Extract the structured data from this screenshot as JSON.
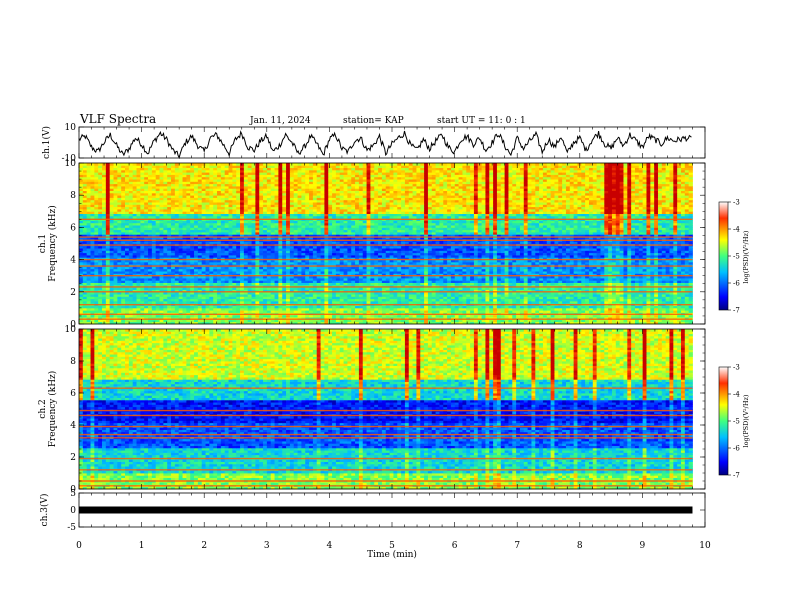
{
  "header": {
    "title": "VLF Spectra",
    "date": "Jan. 11, 2024",
    "station": "station= KAP",
    "start_ut": "start UT =  11: 0  : 1"
  },
  "chart_data": [
    {
      "type": "line",
      "name": "ch1-waveform",
      "ylabel": "ch.1(V)",
      "ylim": [
        -10,
        10
      ],
      "yticks": [
        "10",
        "-10"
      ],
      "x": [
        0.0,
        0.1,
        0.2,
        0.3,
        0.4,
        0.5,
        0.6,
        0.7,
        0.8,
        0.9,
        1.0,
        1.1,
        1.2,
        1.3,
        1.4,
        1.5,
        1.6,
        1.7,
        1.8,
        1.9,
        2.0,
        2.1,
        2.2,
        2.3,
        2.4,
        2.5,
        2.6,
        2.7,
        2.8,
        2.9,
        3.0,
        3.1,
        3.2,
        3.3,
        3.4,
        3.5,
        3.6,
        3.7,
        3.8,
        3.9,
        4.0,
        4.1,
        4.2,
        4.3,
        4.4,
        4.5,
        4.6,
        4.7,
        4.8,
        4.9,
        5.0,
        5.1,
        5.2,
        5.3,
        5.4,
        5.5,
        5.6,
        5.7,
        5.8,
        5.9,
        6.0,
        6.1,
        6.2,
        6.3,
        6.4,
        6.5,
        6.6,
        6.7,
        6.8,
        6.9,
        7.0,
        7.1,
        7.2,
        7.3,
        7.4,
        7.5,
        7.6,
        7.7,
        7.8,
        7.9,
        8.0,
        8.1,
        8.2,
        8.3,
        8.4,
        8.5,
        8.6,
        8.7,
        8.8,
        8.9,
        9.0,
        9.1,
        9.2,
        9.3,
        9.4,
        9.5,
        9.6,
        9.7,
        9.8
      ],
      "values": [
        2,
        4,
        -3,
        -6,
        0,
        5,
        -2,
        -8,
        -4,
        3,
        -1,
        -7,
        1,
        6,
        2,
        -5,
        -9,
        0,
        4,
        -2,
        -6,
        3,
        5,
        -1,
        -7,
        2,
        6,
        -3,
        -5,
        1,
        4,
        -6,
        -2,
        5,
        0,
        -7,
        -3,
        4,
        -1,
        -8,
        2,
        5,
        -4,
        -6,
        1,
        3,
        -5,
        -2,
        4,
        -7,
        -1,
        3,
        6,
        -2,
        -5,
        2,
        -4,
        1,
        5,
        -3,
        -6,
        2,
        4,
        -1,
        3,
        -5,
        0,
        6,
        -2,
        -8,
        3,
        -4,
        1,
        5,
        -6,
        2,
        -3,
        4,
        -7,
        0,
        3,
        -5,
        2,
        6,
        -1,
        -4,
        3,
        -2,
        5,
        1,
        -3,
        4,
        2,
        -1,
        3,
        1,
        2,
        3,
        2
      ],
      "xlim": [
        0,
        10
      ]
    },
    {
      "type": "heatmap",
      "name": "ch1-spectrogram",
      "ylabel": "ch.1\nFrequency (kHz)",
      "ylim": [
        0,
        10
      ],
      "yticks": [
        "0",
        "2",
        "4",
        "6",
        "8",
        "10"
      ],
      "xlim": [
        0,
        9.8
      ],
      "colorbar": {
        "label": "log(PSD)(V²/Hz)",
        "range": [
          -7,
          -3
        ],
        "ticks": [
          "-3",
          "-4",
          "-5",
          "-6",
          "-7"
        ]
      },
      "horizontal_lines_khz": [
        0.3,
        0.6,
        1.2,
        2.0,
        2.3,
        3.0,
        3.6,
        4.0,
        4.9,
        5.2,
        5.4,
        6.5
      ]
    },
    {
      "type": "heatmap",
      "name": "ch2-spectrogram",
      "ylabel": "ch.2\nFrequency (kHz)",
      "ylim": [
        0,
        10
      ],
      "yticks": [
        "0",
        "2",
        "4",
        "6",
        "8",
        "10"
      ],
      "xlim": [
        0,
        9.8
      ],
      "colorbar": {
        "label": "log(PSD)(V²/Hz)",
        "range": [
          -7,
          -3
        ],
        "ticks": [
          "-3",
          "-4",
          "-5",
          "-6",
          "-7"
        ]
      },
      "horizontal_lines_khz": [
        0.2,
        0.5,
        1.2,
        1.9,
        3.2,
        3.4,
        3.9,
        4.6,
        4.9,
        6.3
      ]
    },
    {
      "type": "line",
      "name": "ch3-trace",
      "ylabel": "ch.3(V)",
      "ylim": [
        -5,
        5
      ],
      "yticks": [
        "5",
        "0",
        "-5"
      ],
      "x": [
        0,
        9.8
      ],
      "values": [
        0,
        0
      ],
      "xlim": [
        0,
        10
      ]
    }
  ],
  "xaxis": {
    "label": "Time  (min)",
    "ticks": [
      "0",
      "1",
      "2",
      "3",
      "4",
      "5",
      "6",
      "7",
      "8",
      "9",
      "10"
    ]
  },
  "colors": {
    "jet": [
      "#00008f",
      "#0000ff",
      "#0080ff",
      "#00ffff",
      "#80ff80",
      "#ffff00",
      "#ff8000",
      "#ff0000",
      "#800000"
    ]
  }
}
